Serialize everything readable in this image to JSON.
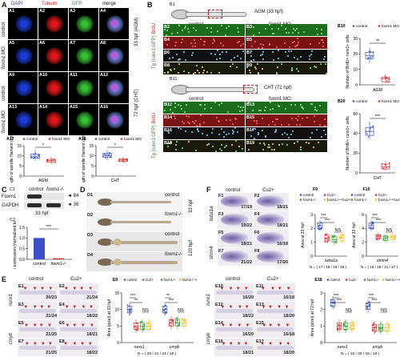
{
  "panelA": {
    "letter": "A",
    "cols": [
      "DAPI",
      "Tubulin",
      "GFP",
      "merge"
    ],
    "cells": [
      "A1",
      "A2",
      "A3",
      "A4",
      "A5",
      "A6",
      "A7",
      "A8",
      "A9",
      "A10",
      "A11",
      "A12",
      "A13",
      "A14",
      "A15",
      "A16"
    ],
    "rows": [
      "control",
      "foxm1 MO",
      "control",
      "foxm1 MO"
    ],
    "stage1": "33 hpf (AGM)",
    "stage2": "72 hpf (CHT)",
    "colors": {
      "dapi": "#1e3ad6",
      "tubulin": "#e01818",
      "gfp": "#35c235",
      "merge": "#6d8ae0"
    }
  },
  "panelA17": {
    "tag": "A17",
    "ylabel": "Length of spindle filament (μm)",
    "legend": [
      "control",
      "foxm1 MO"
    ],
    "sig": "*",
    "xlabel": "AGM",
    "ticks": [
      "0",
      "5",
      "10",
      "15"
    ],
    "chart_data": {
      "type": "box",
      "ylim": [
        0,
        15
      ],
      "series": [
        {
          "name": "control",
          "values": [
            7.6,
            8.8,
            9.8,
            10.9,
            13.2
          ]
        },
        {
          "name": "foxm1 MO",
          "values": [
            6.0,
            6.8,
            7.6,
            8.3,
            9.4
          ]
        }
      ]
    }
  },
  "panelA18": {
    "tag": "A18",
    "ylabel": "Length of spindle filament (μm)",
    "legend": [
      "control",
      "foxm1 MO"
    ],
    "sig": "*",
    "xlabel": "CHT",
    "ticks": [
      "0",
      "5",
      "10",
      "15"
    ],
    "chart_data": {
      "type": "box",
      "ylim": [
        0,
        15
      ],
      "series": [
        {
          "name": "control",
          "values": [
            7.8,
            9.2,
            10.0,
            11.2,
            13.0
          ]
        },
        {
          "name": "foxm1 MO",
          "values": [
            6.6,
            7.2,
            8.0,
            8.6,
            9.4
          ]
        }
      ]
    }
  },
  "panelB": {
    "letter": "B",
    "b1": "B1",
    "agm": "AGM (33 hpf)",
    "control": "control",
    "mo": "foxm1 MO",
    "top": [
      "B2",
      "B3",
      "B4",
      "B5",
      "B6",
      "B7",
      "B8",
      "B9"
    ],
    "b11": "B11",
    "cht": "CHT (72 hpf)",
    "bottom": [
      "B12",
      "B13",
      "B14",
      "B15",
      "B16",
      "B17",
      "B18",
      "B19"
    ],
    "tg1": "Tg (runx1:GFP)",
    "tg1b": "BrdU",
    "tg2": "Tg (runx1:GFP)",
    "tg2b": "BrdU"
  },
  "panelB10": {
    "tag": "B10",
    "legend": [
      "control",
      "foxm1 MO"
    ],
    "ylabel": "Number of BrdU+ runx1+ cells",
    "sig": "**",
    "xlabel": "AGM",
    "ticks": [
      "0",
      "10",
      "20",
      "30"
    ],
    "chart_data": {
      "type": "box",
      "ylim": [
        0,
        30
      ],
      "series": [
        {
          "name": "control",
          "values": [
            14,
            17,
            19,
            21,
            24
          ]
        },
        {
          "name": "foxm1 MO",
          "values": [
            1,
            2,
            4,
            5,
            7
          ]
        }
      ]
    }
  },
  "panelB20": {
    "tag": "B20",
    "legend": [
      "control",
      "foxm1 MO"
    ],
    "ylabel": "Number of BrdU+ runx1+ cells",
    "sig": "***",
    "xlabel": "CHT",
    "ticks": [
      "0",
      "20",
      "40",
      "60"
    ],
    "chart_data": {
      "type": "box",
      "ylim": [
        0,
        60
      ],
      "series": [
        {
          "name": "control",
          "values": [
            34,
            38,
            42,
            46,
            52
          ]
        },
        {
          "name": "foxm1 MO",
          "values": [
            2,
            4,
            6,
            9,
            12
          ]
        }
      ]
    }
  },
  "panelC": {
    "letter": "C",
    "c1": "C1",
    "control": "control",
    "mut": "foxm1-/-",
    "foxm1": "Foxm1",
    "gapdh": "GAPDH",
    "kd84": "84",
    "kd36": "36",
    "hpf": "33 hpf",
    "c2": "C2",
    "ylabel": "Relative expression (normalized to GAPDH)",
    "sig": "***",
    "ticks": [
      "0.0",
      "0.5",
      "1.0",
      "1.5"
    ],
    "chart_data": {
      "type": "bar",
      "categories": [
        "control",
        "foxm1-/-"
      ],
      "values": [
        1.0,
        0.05
      ],
      "ylim": [
        0,
        1.5
      ]
    }
  },
  "panelD": {
    "letter": "D",
    "items": [
      "D1",
      "D2",
      "D3",
      "D4"
    ],
    "control": "control",
    "mut": "foxm1-/-",
    "h33": "33 hpf",
    "h120": "120 hpf"
  },
  "panelF": {
    "letter": "F",
    "control": "control",
    "cu": "Cu2+",
    "cells": [
      {
        "id": "F1",
        "count": "17/19"
      },
      {
        "id": "F2",
        "count": "18/21"
      },
      {
        "id": "F3",
        "count": "19/22"
      },
      {
        "id": "F4",
        "count": "18/21"
      },
      {
        "id": "F5",
        "count": "18/21"
      },
      {
        "id": "F6",
        "count": "16/18"
      },
      {
        "id": "F7",
        "count": "21/22"
      },
      {
        "id": "F8",
        "count": "17/20"
      }
    ],
    "gene1": "tuba1a",
    "gene2": "stmn4",
    "fmut": "foxm1-/-"
  },
  "panelF9": {
    "tag": "F9",
    "legend": [
      "control",
      "Cu2+",
      "foxm1-/-",
      "foxm1-/-+Cu2+"
    ],
    "ylabel": "Area at 33 hpf",
    "sig1": "***",
    "sig2": "***",
    "ns": "NS",
    "xlabel": "tuba1a",
    "n": "N = ( 17 / 18 / 19 / 18 )",
    "ticks": [
      "0",
      "1",
      "2",
      "3"
    ],
    "chart_data": {
      "type": "box",
      "ylim": [
        0,
        3
      ],
      "series": [
        {
          "name": "control",
          "values": [
            1.8,
            2.0,
            2.2,
            2.4,
            2.6
          ]
        },
        {
          "name": "Cu2+",
          "values": [
            0.9,
            1.1,
            1.3,
            1.5,
            1.7
          ]
        },
        {
          "name": "foxm1-/-",
          "values": [
            0.8,
            1.0,
            1.2,
            1.4,
            1.6
          ]
        },
        {
          "name": "foxm1-/-+Cu2+",
          "values": [
            0.9,
            1.1,
            1.3,
            1.5,
            1.7
          ]
        }
      ]
    }
  },
  "panelF10": {
    "tag": "F10",
    "legend": [
      "control",
      "Cu2+",
      "foxm1-/-",
      "foxm1-/-+Cu2+"
    ],
    "ylabel": "Area at 33 hpf",
    "sig1": "***",
    "sig2": "***",
    "ns": "NS",
    "xlabel": "stmn4",
    "n": "N = ( 18 / 18 / 21 / 17 )",
    "ticks": [
      "0",
      "2",
      "4",
      "6"
    ],
    "chart_data": {
      "type": "box",
      "ylim": [
        0,
        6
      ],
      "series": [
        {
          "name": "control",
          "values": [
            3.6,
            4.0,
            4.4,
            4.8,
            5.2
          ]
        },
        {
          "name": "Cu2+",
          "values": [
            2.2,
            2.5,
            2.8,
            3.1,
            3.4
          ]
        },
        {
          "name": "foxm1-/-",
          "values": [
            2.0,
            2.3,
            2.6,
            2.9,
            3.2
          ]
        },
        {
          "name": "foxm1-/-+Cu2+",
          "values": [
            2.1,
            2.4,
            2.7,
            3.0,
            3.3
          ]
        }
      ]
    }
  },
  "panelE": {
    "letter": "E",
    "control": "control",
    "cu": "Cu2+",
    "left": [
      {
        "id": "E1",
        "count": "20/23"
      },
      {
        "id": "E2",
        "count": "21/24"
      },
      {
        "id": "E3",
        "count": "21/24"
      },
      {
        "id": "E4",
        "count": "18/22"
      },
      {
        "id": "E5",
        "count": "21/25"
      },
      {
        "id": "E6",
        "count": "18/21"
      },
      {
        "id": "E7",
        "count": "21/25"
      },
      {
        "id": "E8",
        "count": "18/22"
      }
    ],
    "right": [
      {
        "id": "E10",
        "count": "16/20"
      },
      {
        "id": "E11",
        "count": "16/18"
      },
      {
        "id": "E12",
        "count": "18/22"
      },
      {
        "id": "E13",
        "count": "18/20"
      },
      {
        "id": "E14",
        "count": "16/20"
      },
      {
        "id": "E15",
        "count": "16/18"
      },
      {
        "id": "E16",
        "count": "18/21"
      },
      {
        "id": "E17",
        "count": "18/20"
      }
    ],
    "runx1": "runx1",
    "cmyb": "cmyb",
    "mut": "foxm1-/-",
    "h33": "33 hpf",
    "h72": "72 hpf"
  },
  "panelE9": {
    "tag": "E9",
    "legend": [
      "control",
      "Cu2+",
      "foxm1-/-",
      "foxm1-/-+Cu2+"
    ],
    "ylabel": "Area (pixel) at 33 hpf",
    "sigs": [
      "***",
      "**",
      "NS",
      "**",
      "***",
      "NS"
    ],
    "x1": "runx1",
    "x2": "cmyb",
    "n": "N = ( 20 / 21 / 21 / 18 )",
    "ticks": [
      "0",
      "5",
      "10",
      "15"
    ],
    "chart_data": {
      "type": "box",
      "ylim": [
        0,
        15
      ],
      "groups": [
        "runx1",
        "cmyb"
      ],
      "series": [
        {
          "name": "control",
          "values": [
            [
              8,
              9,
              10,
              11,
              12
            ],
            [
              8,
              9,
              10,
              11,
              12
            ]
          ]
        },
        {
          "name": "Cu2+",
          "values": [
            [
              3,
              4,
              5,
              6,
              7
            ],
            [
              4,
              5,
              6,
              7,
              8
            ]
          ]
        },
        {
          "name": "foxm1-/-",
          "values": [
            [
              3,
              4,
              5,
              6,
              7
            ],
            [
              4,
              5,
              6,
              7,
              8
            ]
          ]
        },
        {
          "name": "foxm1-/-+Cu2+",
          "values": [
            [
              3,
              4,
              5,
              6,
              7
            ],
            [
              4,
              5,
              6,
              7,
              8
            ]
          ]
        }
      ]
    }
  },
  "panelE18": {
    "tag": "E18",
    "legend": [
      "control",
      "Cu2+",
      "foxm1-/-",
      "foxm1-/-+Cu2+"
    ],
    "ylabel": "Area (pixel) at 72 hpf",
    "sigs": [
      "***",
      "***",
      "NS",
      "***",
      "***",
      "NS"
    ],
    "x1": "runx1",
    "x2": "cmyb",
    "n": "N = ( 16 / 20 / 16 / 18 )",
    "ticks": [
      "0",
      "1",
      "2",
      "3"
    ],
    "chart_data": {
      "type": "box",
      "ylim": [
        0,
        3
      ],
      "groups": [
        "runx1",
        "cmyb"
      ],
      "series": [
        {
          "name": "control",
          "values": [
            [
              2.0,
              2.2,
              2.4,
              2.6,
              2.8
            ],
            [
              1.8,
              2.0,
              2.2,
              2.4,
              2.6
            ]
          ]
        },
        {
          "name": "Cu2+",
          "values": [
            [
              0.6,
              0.8,
              1.0,
              1.2,
              1.4
            ],
            [
              0.5,
              0.7,
              0.9,
              1.1,
              1.3
            ]
          ]
        },
        {
          "name": "foxm1-/-",
          "values": [
            [
              0.6,
              0.8,
              1.0,
              1.2,
              1.4
            ],
            [
              0.5,
              0.7,
              0.9,
              1.1,
              1.3
            ]
          ]
        },
        {
          "name": "foxm1-/-+Cu2+",
          "values": [
            [
              0.6,
              0.8,
              1.0,
              1.2,
              1.4
            ],
            [
              0.5,
              0.7,
              0.9,
              1.1,
              1.3
            ]
          ]
        }
      ]
    }
  },
  "colors": {
    "control": "#3a50c8",
    "mo": "#d23232",
    "cu": "#e03030",
    "mut": "#2ca02c",
    "mutcu": "#f0c020",
    "stripGreen": "#1d6b1d",
    "stripRed": "#7a1414",
    "stripDark": "#101010"
  }
}
